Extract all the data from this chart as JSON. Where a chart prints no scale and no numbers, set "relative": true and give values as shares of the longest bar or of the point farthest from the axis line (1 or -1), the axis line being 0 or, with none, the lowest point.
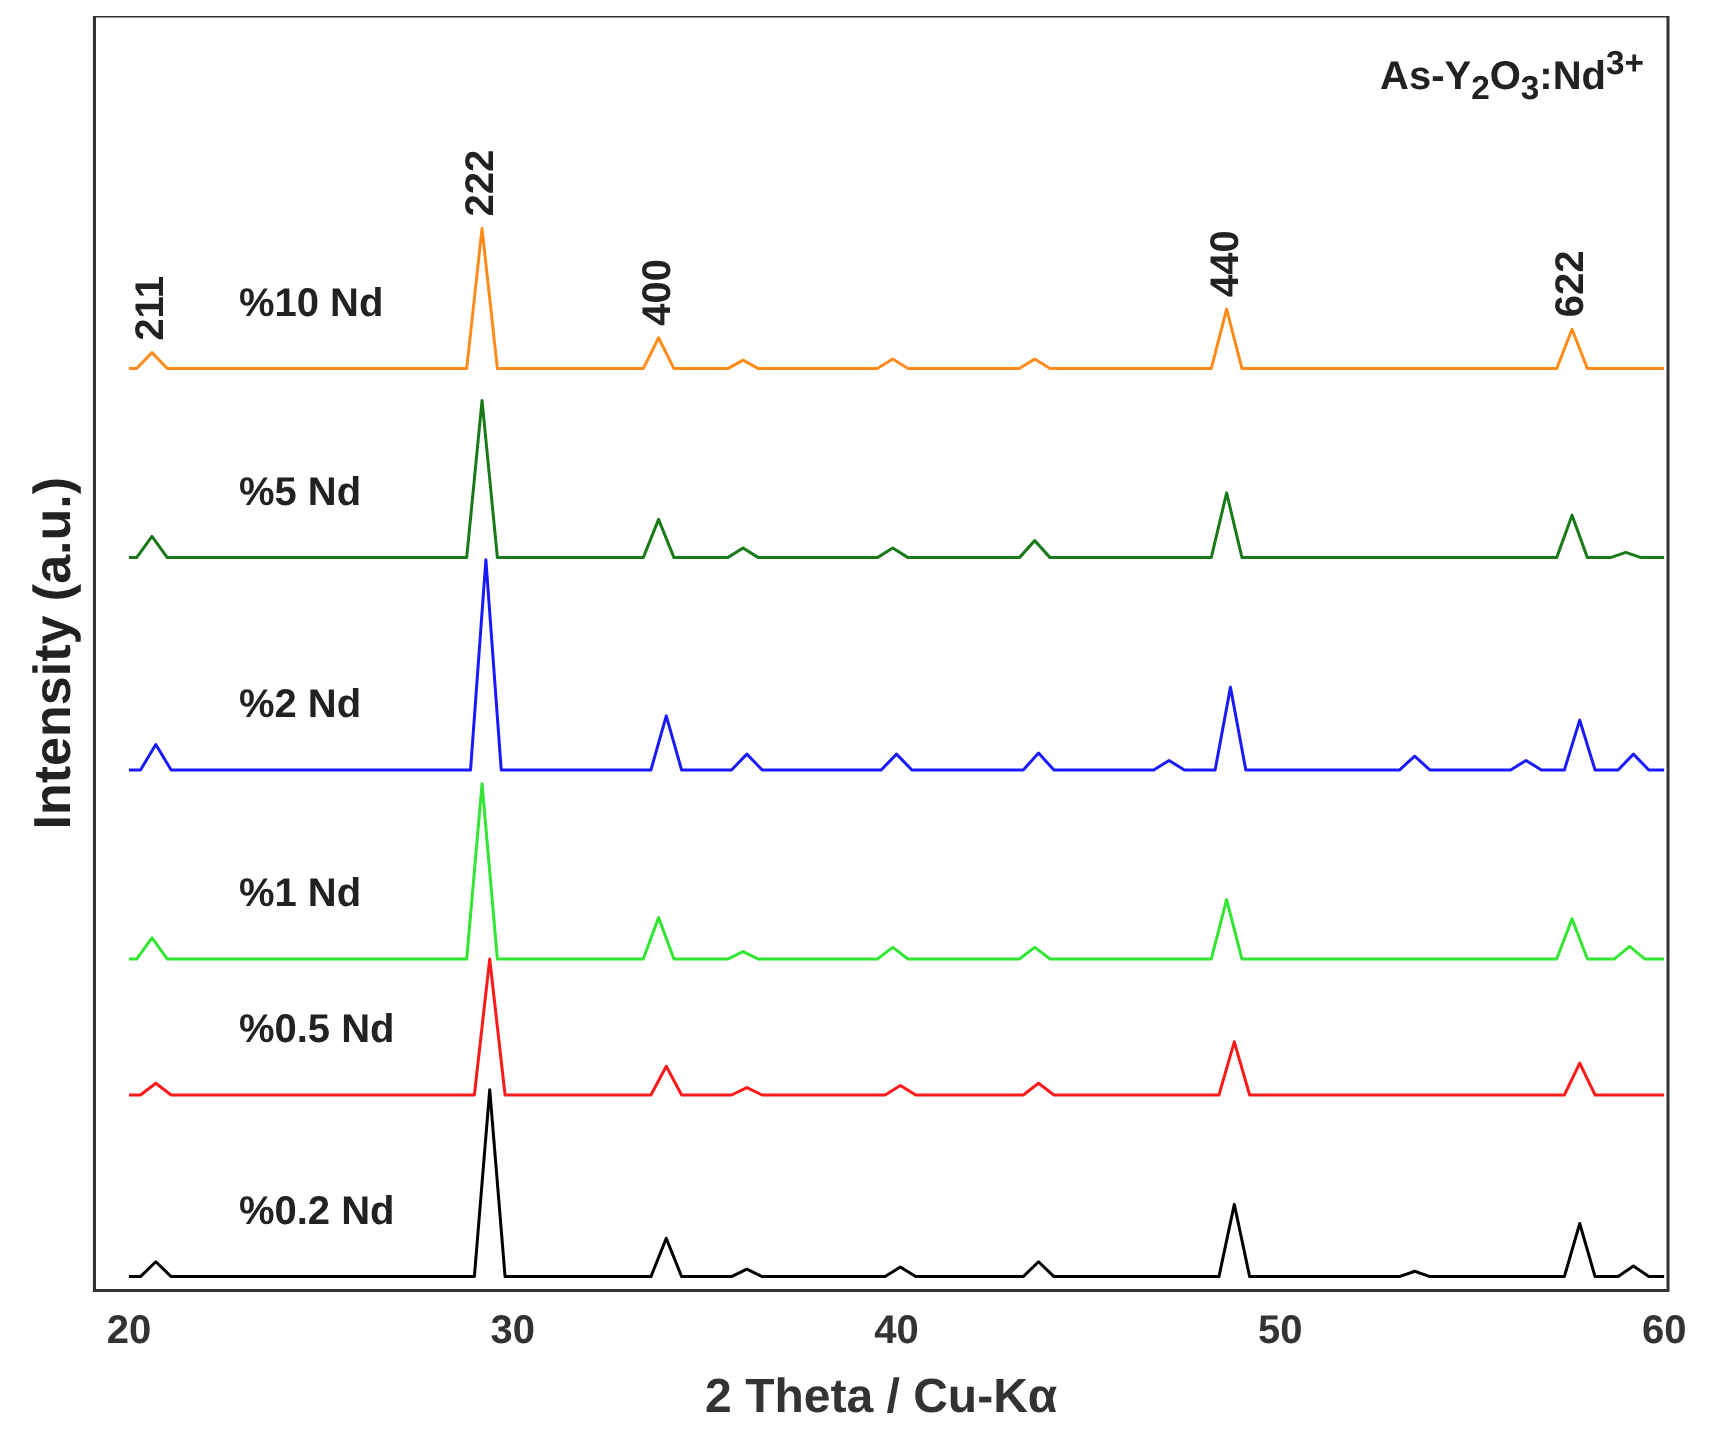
{
  "chart_data": {
    "type": "line",
    "relative": true,
    "xlabel": "2 Theta / Cu-Kα",
    "ylabel": "Intensity (a.u.)",
    "xlim": [
      19.1,
      60.1
    ],
    "xticks": [
      20,
      30,
      40,
      50,
      60
    ],
    "grid": false,
    "legend": false,
    "tick_labels": "x",
    "marker": "none",
    "line_style": "solid",
    "annotations": [
      "As-Y$_{2}$O$_{3}$:Nd$^{3+}$",
      {
        "text": "211",
        "x": 20.6,
        "y": 0.883
      },
      {
        "text": "222",
        "x": 29.2,
        "y": 1.0
      },
      {
        "text": "400",
        "x": 33.8,
        "y": 0.897
      },
      {
        "text": "440",
        "x": 48.6,
        "y": 0.924
      },
      {
        "text": "622",
        "x": 57.6,
        "y": 0.905
      }
    ],
    "series": [
      {
        "name": "%10 Nd",
        "color": "#ff8c1a",
        "x": [
          20,
          20.2,
          20.6,
          21,
          28.8,
          29.2,
          29.6,
          33.4,
          33.8,
          34.2,
          35.6,
          36,
          36.4,
          39.5,
          39.9,
          40.3,
          43.2,
          43.6,
          44,
          48.2,
          48.6,
          49,
          57.2,
          57.6,
          58,
          60
        ],
        "values": [
          0.868,
          0.868,
          0.883,
          0.868,
          0.868,
          1.0,
          0.868,
          0.868,
          0.897,
          0.868,
          0.868,
          0.876,
          0.868,
          0.868,
          0.877,
          0.868,
          0.868,
          0.877,
          0.868,
          0.868,
          0.924,
          0.868,
          0.868,
          0.905,
          0.868,
          0.868
        ]
      },
      {
        "name": "%5 Nd",
        "color": "#1a7a1a",
        "x": [
          20,
          20.2,
          20.6,
          21,
          28.8,
          29.2,
          29.6,
          33.4,
          33.8,
          34.2,
          35.6,
          36,
          36.4,
          39.5,
          39.9,
          40.3,
          43.2,
          43.6,
          44,
          48.2,
          48.6,
          49,
          57.2,
          57.6,
          58,
          58.6,
          59,
          59.4,
          60
        ],
        "values": [
          0.69,
          0.69,
          0.71,
          0.69,
          0.69,
          0.838,
          0.69,
          0.69,
          0.726,
          0.69,
          0.69,
          0.699,
          0.69,
          0.69,
          0.699,
          0.69,
          0.69,
          0.706,
          0.69,
          0.69,
          0.751,
          0.69,
          0.69,
          0.73,
          0.69,
          0.69,
          0.695,
          0.69,
          0.69
        ]
      },
      {
        "name": "%2 Nd",
        "color": "#1a1aff",
        "x": [
          20,
          20.3,
          20.7,
          21.1,
          28.9,
          29.3,
          29.7,
          33.6,
          34,
          34.4,
          35.7,
          36.1,
          36.5,
          39.6,
          40,
          40.4,
          43.3,
          43.7,
          44.1,
          46.7,
          47.1,
          47.5,
          48.3,
          48.7,
          49.1,
          53.1,
          53.5,
          53.9,
          56,
          56.4,
          56.8,
          57.4,
          57.8,
          58.2,
          58.8,
          59.2,
          59.6,
          60
        ],
        "values": [
          0.49,
          0.49,
          0.514,
          0.49,
          0.49,
          0.688,
          0.49,
          0.49,
          0.541,
          0.49,
          0.49,
          0.505,
          0.49,
          0.49,
          0.505,
          0.49,
          0.49,
          0.506,
          0.49,
          0.49,
          0.499,
          0.49,
          0.49,
          0.568,
          0.49,
          0.49,
          0.503,
          0.49,
          0.49,
          0.499,
          0.49,
          0.49,
          0.537,
          0.49,
          0.49,
          0.505,
          0.49,
          0.49
        ]
      },
      {
        "name": "%1 Nd",
        "color": "#33e633",
        "x": [
          20,
          20.2,
          20.6,
          21,
          28.8,
          29.2,
          29.6,
          33.4,
          33.8,
          34.2,
          35.6,
          36,
          36.4,
          39.5,
          39.9,
          40.3,
          43.2,
          43.6,
          44,
          48.2,
          48.6,
          49,
          57.2,
          57.6,
          58,
          58.7,
          59.1,
          59.5,
          60
        ],
        "values": [
          0.312,
          0.312,
          0.332,
          0.312,
          0.312,
          0.477,
          0.312,
          0.312,
          0.351,
          0.312,
          0.312,
          0.319,
          0.312,
          0.312,
          0.323,
          0.312,
          0.312,
          0.323,
          0.312,
          0.312,
          0.368,
          0.312,
          0.312,
          0.35,
          0.312,
          0.312,
          0.324,
          0.312,
          0.312
        ]
      },
      {
        "name": "%0.5 Nd",
        "color": "#ff1a1a",
        "x": [
          20,
          20.3,
          20.7,
          21.1,
          29,
          29.4,
          29.8,
          33.6,
          34,
          34.4,
          35.7,
          36.1,
          36.5,
          39.7,
          40.1,
          40.5,
          43.3,
          43.7,
          44.1,
          48.4,
          48.8,
          49.2,
          57.4,
          57.8,
          58.2,
          60
        ],
        "values": [
          0.184,
          0.184,
          0.195,
          0.184,
          0.184,
          0.312,
          0.184,
          0.184,
          0.211,
          0.184,
          0.184,
          0.191,
          0.184,
          0.184,
          0.193,
          0.184,
          0.184,
          0.195,
          0.184,
          0.184,
          0.234,
          0.184,
          0.184,
          0.214,
          0.184,
          0.184
        ]
      },
      {
        "name": "%0.2 Nd",
        "color": "#000000",
        "x": [
          20,
          20.3,
          20.7,
          21.1,
          29,
          29.4,
          29.8,
          33.6,
          34,
          34.4,
          35.7,
          36.1,
          36.5,
          39.7,
          40.1,
          40.5,
          43.3,
          43.7,
          44.1,
          48.4,
          48.8,
          49.2,
          53.1,
          53.5,
          53.9,
          57.4,
          57.8,
          58.2,
          58.8,
          59.2,
          59.6,
          60
        ],
        "values": [
          0.013,
          0.013,
          0.027,
          0.013,
          0.013,
          0.189,
          0.013,
          0.013,
          0.049,
          0.013,
          0.013,
          0.02,
          0.013,
          0.013,
          0.022,
          0.013,
          0.013,
          0.027,
          0.013,
          0.013,
          0.081,
          0.013,
          0.013,
          0.018,
          0.013,
          0.013,
          0.063,
          0.013,
          0.013,
          0.023,
          0.013,
          0.013
        ]
      }
    ]
  }
}
